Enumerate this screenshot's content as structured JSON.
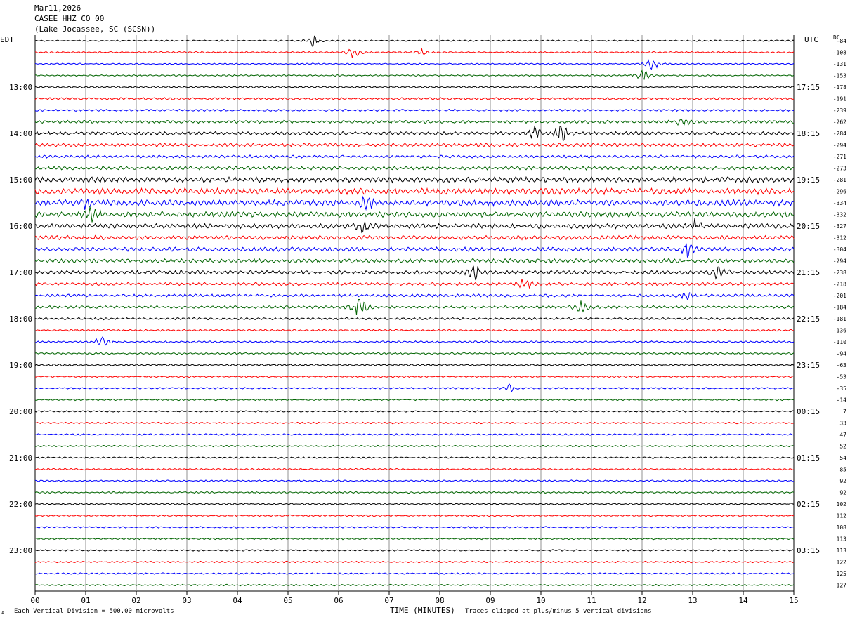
{
  "header": {
    "date": "Mar11,2026",
    "station": "CASEE HHZ CO 00",
    "location": "(Lake Jocassee, SC (SCSN))"
  },
  "chart_data": {
    "type": "line",
    "title": "CASEE HHZ CO 00",
    "left_axis_label": "EDT",
    "right_axis_label": "UTC",
    "dc_label": "DC",
    "xlabel": "TIME (MINUTES)",
    "xlim": [
      0,
      15
    ],
    "x_ticks": [
      "00",
      "01",
      "02",
      "03",
      "04",
      "05",
      "06",
      "07",
      "08",
      "09",
      "10",
      "11",
      "12",
      "13",
      "14",
      "15"
    ],
    "left_time_labels": [
      {
        "row": 4,
        "label": "13:00"
      },
      {
        "row": 8,
        "label": "14:00"
      },
      {
        "row": 12,
        "label": "15:00"
      },
      {
        "row": 16,
        "label": "16:00"
      },
      {
        "row": 20,
        "label": "17:00"
      },
      {
        "row": 24,
        "label": "18:00"
      },
      {
        "row": 28,
        "label": "19:00"
      },
      {
        "row": 32,
        "label": "20:00"
      },
      {
        "row": 36,
        "label": "21:00"
      },
      {
        "row": 40,
        "label": "22:00"
      },
      {
        "row": 44,
        "label": "23:00"
      }
    ],
    "right_time_labels": [
      {
        "row": 4,
        "label": "17:15"
      },
      {
        "row": 8,
        "label": "18:15"
      },
      {
        "row": 12,
        "label": "19:15"
      },
      {
        "row": 16,
        "label": "20:15"
      },
      {
        "row": 20,
        "label": "21:15"
      },
      {
        "row": 24,
        "label": "22:15"
      },
      {
        "row": 28,
        "label": "23:15"
      },
      {
        "row": 32,
        "label": "00:15"
      },
      {
        "row": 36,
        "label": "01:15"
      },
      {
        "row": 40,
        "label": "02:15"
      },
      {
        "row": 44,
        "label": "03:15"
      }
    ],
    "dc_offsets": [
      "-84",
      "-108",
      "-131",
      "-153",
      "-178",
      "-191",
      "-239",
      "-262",
      "-284",
      "-294",
      "-271",
      "-273",
      "-281",
      "-296",
      "-334",
      "-332",
      "-327",
      "-312",
      "-304",
      "-294",
      "-238",
      "-218",
      "-201",
      "-184",
      "-181",
      "-136",
      "-110",
      "-94",
      "-63",
      "-53",
      "-35",
      "-14",
      "7",
      "33",
      "47",
      "52",
      "54",
      "85",
      "92",
      "92",
      "102",
      "112",
      "108",
      "113",
      "113",
      "122",
      "125",
      "127"
    ],
    "trace_colors": [
      "#000000",
      "#ff0000",
      "#0000ff",
      "#006400"
    ],
    "trace_amplitude": [
      0.22,
      0.25,
      0.22,
      0.22,
      0.28,
      0.35,
      0.32,
      0.45,
      0.55,
      0.55,
      0.45,
      0.55,
      0.85,
      0.95,
      0.95,
      0.85,
      0.75,
      0.65,
      0.65,
      0.65,
      0.6,
      0.5,
      0.45,
      0.45,
      0.35,
      0.3,
      0.28,
      0.28,
      0.28,
      0.25,
      0.25,
      0.25,
      0.25,
      0.25,
      0.25,
      0.25,
      0.25,
      0.25,
      0.25,
      0.25,
      0.25,
      0.25,
      0.25,
      0.25,
      0.25,
      0.25,
      0.25,
      0.25
    ],
    "events": [
      {
        "row": 0,
        "minute": 5.5,
        "amp": 2.2
      },
      {
        "row": 1,
        "minute": 6.3,
        "amp": 2.5
      },
      {
        "row": 1,
        "minute": 7.6,
        "amp": 2.0
      },
      {
        "row": 2,
        "minute": 12.2,
        "amp": 3.0
      },
      {
        "row": 3,
        "minute": 12.0,
        "amp": 3.0
      },
      {
        "row": 7,
        "minute": 12.8,
        "amp": 2.5
      },
      {
        "row": 8,
        "minute": 10.4,
        "amp": 3.5
      },
      {
        "row": 8,
        "minute": 9.9,
        "amp": 3.0
      },
      {
        "row": 14,
        "minute": 6.5,
        "amp": 4.0
      },
      {
        "row": 14,
        "minute": 1.0,
        "amp": 3.0
      },
      {
        "row": 15,
        "minute": 1.1,
        "amp": 3.5
      },
      {
        "row": 16,
        "minute": 13.0,
        "amp": 3.0
      },
      {
        "row": 16,
        "minute": 6.5,
        "amp": 2.5
      },
      {
        "row": 18,
        "minute": 12.9,
        "amp": 3.5
      },
      {
        "row": 20,
        "minute": 8.7,
        "amp": 3.0
      },
      {
        "row": 20,
        "minute": 13.5,
        "amp": 3.0
      },
      {
        "row": 21,
        "minute": 9.7,
        "amp": 3.5
      },
      {
        "row": 22,
        "minute": 12.9,
        "amp": 3.0
      },
      {
        "row": 23,
        "minute": 6.4,
        "amp": 5.0
      },
      {
        "row": 23,
        "minute": 10.8,
        "amp": 2.5
      },
      {
        "row": 26,
        "minute": 1.3,
        "amp": 3.0
      },
      {
        "row": 30,
        "minute": 9.4,
        "amp": 1.5
      }
    ]
  },
  "footer": {
    "scale_note": "Each Vertical Division =  500.00 microvolts",
    "clip_note": "Traces clipped at plus/minus 5 vertical divisions",
    "corner_mark": "A"
  }
}
